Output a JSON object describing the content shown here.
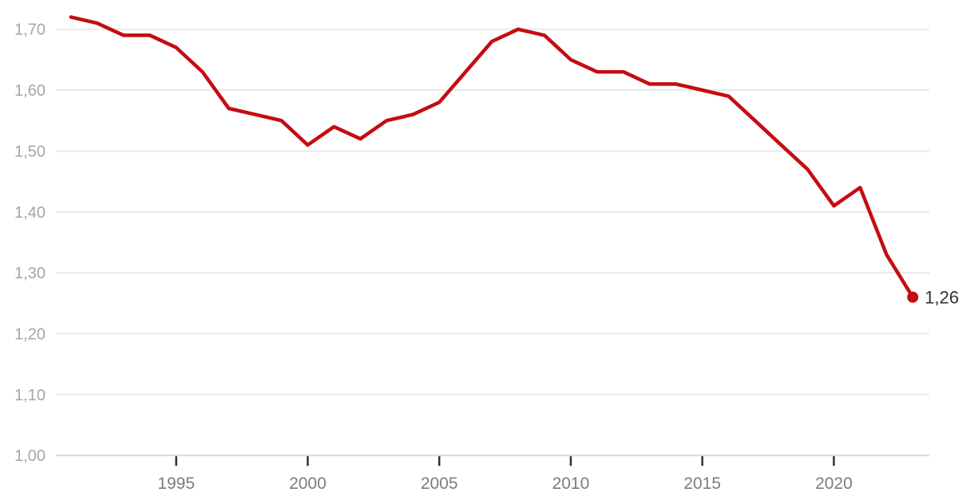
{
  "chart_data": {
    "type": "line",
    "x": [
      1991,
      1992,
      1993,
      1994,
      1995,
      1996,
      1997,
      1998,
      1999,
      2000,
      2001,
      2002,
      2003,
      2004,
      2005,
      2006,
      2007,
      2008,
      2009,
      2010,
      2011,
      2012,
      2013,
      2014,
      2015,
      2016,
      2017,
      2018,
      2019,
      2020,
      2021,
      2022,
      2023
    ],
    "values": [
      1.72,
      1.71,
      1.69,
      1.69,
      1.67,
      1.63,
      1.57,
      1.56,
      1.55,
      1.51,
      1.54,
      1.52,
      1.55,
      1.56,
      1.58,
      1.63,
      1.68,
      1.7,
      1.69,
      1.65,
      1.63,
      1.63,
      1.61,
      1.61,
      1.6,
      1.59,
      1.55,
      1.51,
      1.47,
      1.41,
      1.44,
      1.33,
      1.26
    ],
    "y_ticks": [
      {
        "v": 1.7,
        "label": "1,70"
      },
      {
        "v": 1.6,
        "label": "1,60"
      },
      {
        "v": 1.5,
        "label": "1,50"
      },
      {
        "v": 1.4,
        "label": "1,40"
      },
      {
        "v": 1.3,
        "label": "1,30"
      },
      {
        "v": 1.2,
        "label": "1,20"
      },
      {
        "v": 1.1,
        "label": "1,10"
      },
      {
        "v": 1.0,
        "label": "1,00"
      }
    ],
    "x_ticks": [
      {
        "v": 1995,
        "label": "1995"
      },
      {
        "v": 2000,
        "label": "2000"
      },
      {
        "v": 2005,
        "label": "2005"
      },
      {
        "v": 2010,
        "label": "2010"
      },
      {
        "v": 2015,
        "label": "2015"
      },
      {
        "v": 2020,
        "label": "2020"
      }
    ],
    "end_point": {
      "year": 2023,
      "value": 1.26,
      "label": "1,26"
    },
    "ylim": [
      1.0,
      1.75
    ],
    "xlim": [
      1991,
      2023
    ],
    "grid": "horizontal-only",
    "legend": "none",
    "decimal_separator": ","
  },
  "colors": {
    "line": "#c40d11",
    "end_dot": "#c40d11",
    "end_label": "#333333",
    "y_tick_label": "#a6a6a6",
    "x_tick_label": "#7d7d7d",
    "gridline": "#e9e9e9",
    "baseline": "#d8d8d8",
    "tick_mark": "#2f2f2f",
    "background": "#ffffff"
  }
}
